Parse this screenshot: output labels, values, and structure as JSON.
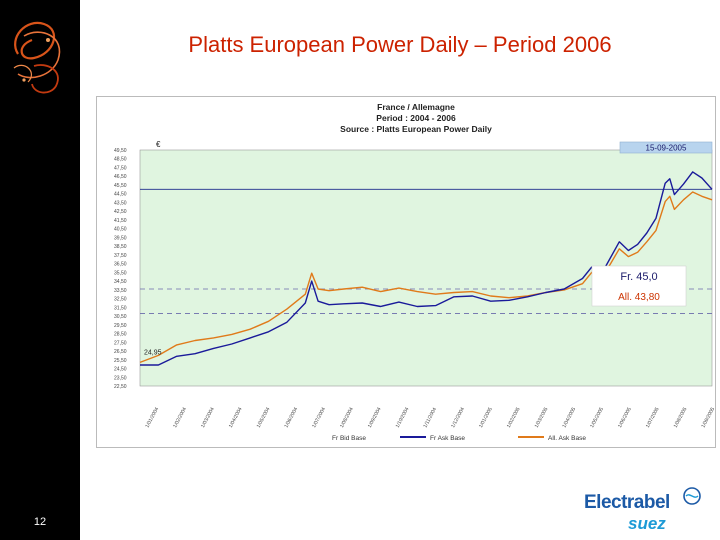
{
  "slide": {
    "title": "Platts European Power Daily – Period 2006",
    "page_number": "12"
  },
  "brand": {
    "name": "Electrabel",
    "sub": "suez"
  },
  "colors": {
    "title": "#cc2200",
    "fr_ask": "#1a1a9a",
    "all_ask": "#e07a1a",
    "plot_bg": "#e0f5e0",
    "brand": "#1c5aa6"
  },
  "chart_data": {
    "type": "line",
    "title_lines": [
      "France / Allemagne",
      "Period : 2004 - 2006",
      "Source : Platts European Power Daily"
    ],
    "unit_label": "€",
    "date_label": "15-09-2005",
    "start_label": "24,95",
    "annotation_fr": "Fr.  45,0",
    "annotation_all": "All.  43,80",
    "reference_line": 45.0,
    "dashed_levels": [
      33.6,
      30.8
    ],
    "ylim": [
      22.5,
      49.5
    ],
    "yticks": [
      "49,50",
      "48,50",
      "47,50",
      "46,50",
      "45,50",
      "44,50",
      "43,50",
      "42,50",
      "41,50",
      "40,50",
      "39,50",
      "38,50",
      "37,50",
      "36,50",
      "35,50",
      "34,50",
      "33,50",
      "32,50",
      "31,50",
      "30,50",
      "29,50",
      "28,50",
      "27,50",
      "26,50",
      "25,50",
      "24,50",
      "23,50",
      "22,50"
    ],
    "xticks": [
      "1/01/2004",
      "1/02/2004",
      "1/03/2004",
      "1/04/2004",
      "1/05/2004",
      "1/06/2004",
      "1/07/2004",
      "1/08/2004",
      "1/09/2004",
      "1/10/2004",
      "1/11/2004",
      "1/12/2004",
      "1/01/2005",
      "1/02/2005",
      "1/03/2005",
      "1/04/2005",
      "1/05/2005",
      "1/06/2005",
      "1/07/2005",
      "1/08/2005",
      "1/09/2005"
    ],
    "series": [
      {
        "name": "Fr Ask Base",
        "x": [
          "2004-01-01",
          "2004-01-21",
          "2004-02-10",
          "2004-03-01",
          "2004-03-21",
          "2004-04-10",
          "2004-04-30",
          "2004-05-20",
          "2004-06-09",
          "2004-06-29",
          "2004-07-06",
          "2004-07-13",
          "2004-07-25",
          "2004-08-10",
          "2004-08-30",
          "2004-09-19",
          "2004-10-09",
          "2004-10-29",
          "2004-11-18",
          "2004-12-08",
          "2004-12-28",
          "2005-01-17",
          "2005-02-06",
          "2005-02-26",
          "2005-03-18",
          "2005-04-07",
          "2005-04-27",
          "2005-05-07",
          "2005-05-17",
          "2005-05-27",
          "2005-06-06",
          "2005-06-16",
          "2005-06-26",
          "2005-07-06",
          "2005-07-16",
          "2005-07-26",
          "2005-07-31",
          "2005-08-05",
          "2005-08-15",
          "2005-08-25",
          "2005-09-04",
          "2005-09-15"
        ],
        "values": [
          24.9,
          24.9,
          25.9,
          26.2,
          26.8,
          27.3,
          28.0,
          28.7,
          29.8,
          32.0,
          34.5,
          32.2,
          31.8,
          31.9,
          32.0,
          31.6,
          32.1,
          31.6,
          31.7,
          32.7,
          32.8,
          32.2,
          32.3,
          32.7,
          33.2,
          33.6,
          34.8,
          36.1,
          35.2,
          37.1,
          39.0,
          38.0,
          38.7,
          40.0,
          41.7,
          45.7,
          46.2,
          44.4,
          45.6,
          47.0,
          46.3,
          45.0
        ]
      },
      {
        "name": "All. Ask Base",
        "x": [
          "2004-01-01",
          "2004-01-21",
          "2004-02-10",
          "2004-03-01",
          "2004-03-21",
          "2004-04-10",
          "2004-04-30",
          "2004-05-20",
          "2004-06-09",
          "2004-06-29",
          "2004-07-06",
          "2004-07-13",
          "2004-07-25",
          "2004-08-10",
          "2004-08-30",
          "2004-09-19",
          "2004-10-09",
          "2004-10-29",
          "2004-11-18",
          "2004-12-08",
          "2004-12-28",
          "2005-01-17",
          "2005-02-06",
          "2005-02-26",
          "2005-03-18",
          "2005-04-07",
          "2005-04-27",
          "2005-05-07",
          "2005-05-17",
          "2005-05-27",
          "2005-06-06",
          "2005-06-16",
          "2005-06-26",
          "2005-07-06",
          "2005-07-16",
          "2005-07-26",
          "2005-07-31",
          "2005-08-05",
          "2005-08-15",
          "2005-08-25",
          "2005-09-04",
          "2005-09-15"
        ],
        "values": [
          25.2,
          26.0,
          27.2,
          27.7,
          28.0,
          28.4,
          29.0,
          29.9,
          31.3,
          33.0,
          35.4,
          33.6,
          33.4,
          33.6,
          33.8,
          33.3,
          33.7,
          33.3,
          33.0,
          33.2,
          33.3,
          32.8,
          32.6,
          32.8,
          33.2,
          33.5,
          34.2,
          35.5,
          34.8,
          36.4,
          38.2,
          37.3,
          37.8,
          39.0,
          40.3,
          43.6,
          44.2,
          42.7,
          43.8,
          44.7,
          44.2,
          43.8
        ]
      }
    ],
    "legend": [
      "Fr Bid Base",
      "Fr Ask Base",
      "All. Ask Base"
    ],
    "legend_position": "bottom"
  }
}
